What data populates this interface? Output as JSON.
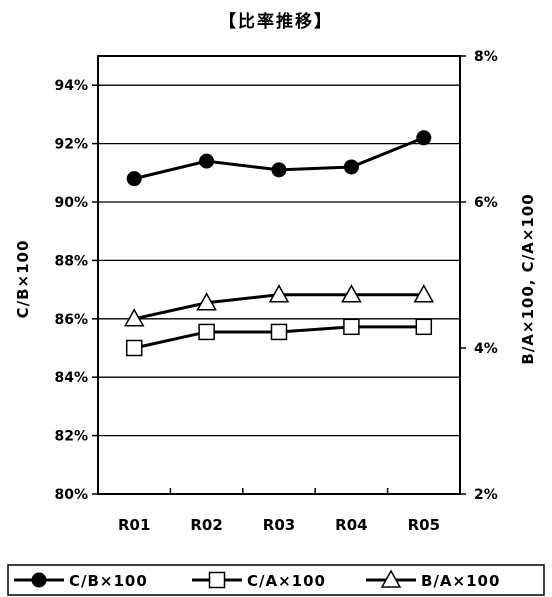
{
  "chart_data": {
    "type": "line",
    "title": "【比率推移】",
    "categories": [
      "R01",
      "R02",
      "R03",
      "R04",
      "R05"
    ],
    "ylabel_left": "C/B×100",
    "ylabel_right": "B/A×100, C/A×100",
    "ylim_left": [
      80,
      95
    ],
    "ylim_right": [
      2,
      8
    ],
    "yticks_left": [
      "80%",
      "82%",
      "84%",
      "86%",
      "88%",
      "90%",
      "92%",
      "94%"
    ],
    "yticks_right": [
      "2%",
      "4%",
      "6%",
      "8%"
    ],
    "grid": true,
    "legend_position": "bottom",
    "series": [
      {
        "name": "C/B×100",
        "axis": "left",
        "marker": "circle",
        "values": [
          90.8,
          91.4,
          91.1,
          91.2,
          92.2
        ]
      },
      {
        "name": "C/A×100",
        "axis": "right",
        "marker": "square",
        "values": [
          4.0,
          4.22,
          4.22,
          4.29,
          4.29
        ]
      },
      {
        "name": "B/A×100",
        "axis": "right",
        "marker": "triangle",
        "values": [
          4.4,
          4.62,
          4.73,
          4.73,
          4.73
        ]
      }
    ]
  }
}
